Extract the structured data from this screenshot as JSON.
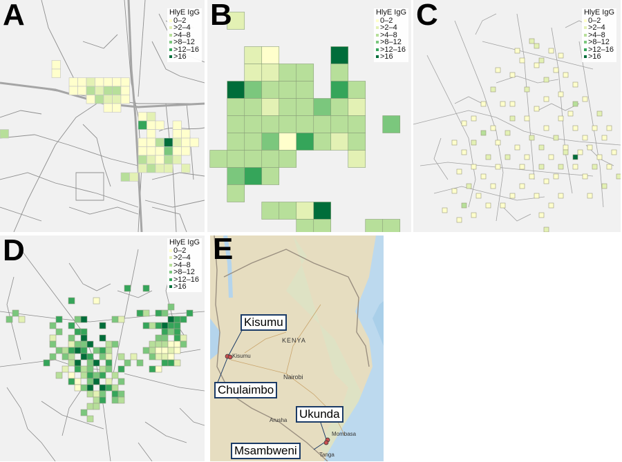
{
  "figure": {
    "panels": [
      {
        "letter": "A"
      },
      {
        "letter": "B"
      },
      {
        "letter": "C"
      },
      {
        "letter": "D"
      },
      {
        "letter": "E"
      }
    ],
    "legend": {
      "title": "HlyE IgG",
      "bins": [
        {
          "label": "0–2",
          "color": "#ffffcc"
        },
        {
          "label": ">2–4",
          "color": "#e3f1b4"
        },
        {
          "label": ">4–8",
          "color": "#b7df9a"
        },
        {
          "label": ">8–12",
          "color": "#7bc77d"
        },
        {
          "label": ">12–16",
          "color": "#35a55a"
        },
        {
          "label": ">16",
          "color": "#006d3a"
        }
      ]
    },
    "map_e": {
      "country_label": "KENYA",
      "city_labels": {
        "kisumu_small": "Kisumu",
        "nairobi": "Nairobi",
        "arusha": "Arusha",
        "mombasa": "Mombasa",
        "tanga": "Tanga"
      },
      "sites": [
        "Kisumu",
        "Chulaimbo",
        "Ukunda",
        "Msambweni"
      ]
    }
  }
}
